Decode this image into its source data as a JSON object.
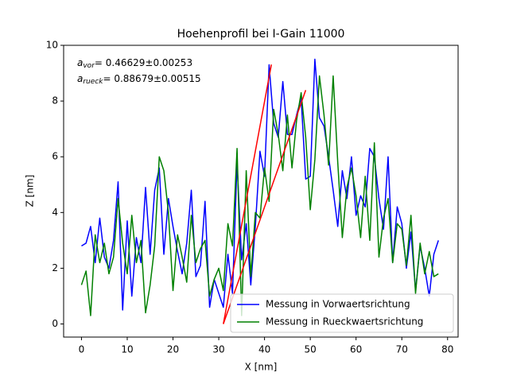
{
  "chart_data": {
    "type": "line",
    "title": "Hoehenprofil bei I-Gain 11000",
    "xlabel": "X [nm]",
    "ylabel": "Z [nm]",
    "xlim": [
      -3.9,
      82.3
    ],
    "ylim": [
      -0.47,
      10
    ],
    "xticks": [
      0,
      10,
      20,
      30,
      40,
      50,
      60,
      70,
      80
    ],
    "yticks": [
      0,
      2,
      4,
      6,
      8,
      10
    ],
    "legend": "lower right",
    "x": [
      0,
      1,
      2,
      3,
      4,
      5,
      6,
      7,
      8,
      9,
      10,
      11,
      12,
      13,
      14,
      15,
      16,
      17,
      18,
      19,
      20,
      21,
      22,
      23,
      24,
      25,
      26,
      27,
      28,
      29,
      30,
      31,
      32,
      33,
      34,
      35,
      36,
      37,
      38,
      39,
      40,
      41,
      42,
      43,
      44,
      45,
      46,
      47,
      48,
      49,
      50,
      51,
      52,
      53,
      54,
      55,
      56,
      57,
      58,
      59,
      60,
      61,
      62,
      63,
      64,
      65,
      66,
      67,
      68,
      69,
      70,
      71,
      72,
      73,
      74,
      75,
      76,
      77,
      78
    ],
    "series": [
      {
        "name": "Messung in Vorwaertsrichtung",
        "color": "#0000ff",
        "values": [
          2.8,
          2.9,
          3.5,
          2.2,
          3.8,
          2.4,
          2.0,
          3.0,
          5.1,
          0.5,
          3.7,
          1.0,
          3.1,
          2.2,
          4.9,
          2.5,
          4.8,
          5.6,
          2.5,
          4.5,
          3.5,
          2.6,
          1.8,
          2.9,
          4.8,
          1.7,
          2.1,
          4.4,
          0.6,
          1.6,
          1.1,
          0.6,
          2.5,
          1.1,
          5.8,
          2.3,
          3.6,
          1.4,
          3.5,
          6.2,
          5.3,
          9.3,
          7.2,
          6.7,
          8.7,
          6.8,
          6.8,
          7.5,
          8.1,
          5.2,
          5.3,
          9.5,
          7.4,
          7.1,
          6.0,
          4.8,
          3.5,
          5.5,
          4.5,
          6.0,
          3.9,
          4.6,
          4.2,
          6.3,
          6.0,
          4.5,
          3.4,
          6.0,
          2.2,
          4.2,
          3.6,
          2.0,
          3.3,
          1.2,
          2.8,
          2.0,
          1.0,
          2.5,
          3.0
        ]
      },
      {
        "name": "Messung in Rueckwaertsrichtung",
        "color": "#008000",
        "values": [
          1.4,
          1.9,
          0.3,
          3.2,
          2.2,
          2.9,
          1.8,
          2.4,
          4.5,
          2.9,
          1.8,
          3.9,
          2.2,
          3.0,
          0.4,
          1.4,
          2.8,
          6.0,
          5.5,
          4.0,
          1.2,
          3.2,
          2.4,
          1.5,
          3.9,
          2.2,
          2.7,
          3.0,
          1.0,
          1.6,
          2.0,
          1.2,
          3.6,
          2.8,
          6.3,
          0.3,
          5.5,
          1.7,
          4.0,
          3.8,
          5.6,
          4.4,
          7.7,
          6.8,
          5.5,
          7.5,
          5.6,
          7.3,
          8.3,
          6.7,
          4.1,
          5.9,
          8.9,
          7.5,
          5.7,
          8.9,
          5.8,
          3.1,
          4.9,
          5.6,
          4.6,
          3.1,
          5.3,
          3.0,
          6.5,
          2.4,
          3.8,
          4.5,
          2.2,
          3.6,
          3.4,
          2.1,
          3.9,
          1.1,
          2.9,
          1.8,
          2.6,
          1.7,
          1.8
        ]
      }
    ],
    "fits": [
      {
        "color": "#ff0000",
        "x": [
          31,
          49
        ],
        "values": [
          0,
          8.39
        ]
      },
      {
        "color": "#ff0000",
        "x": [
          31,
          41.5
        ],
        "values": [
          0,
          9.31
        ]
      }
    ],
    "annotations": [
      {
        "symbol": "a",
        "subscript": "vor",
        "text": "= 0.46629±0.00253"
      },
      {
        "symbol": "a",
        "subscript": "rueck",
        "text": "= 0.88679±0.00515"
      }
    ]
  }
}
